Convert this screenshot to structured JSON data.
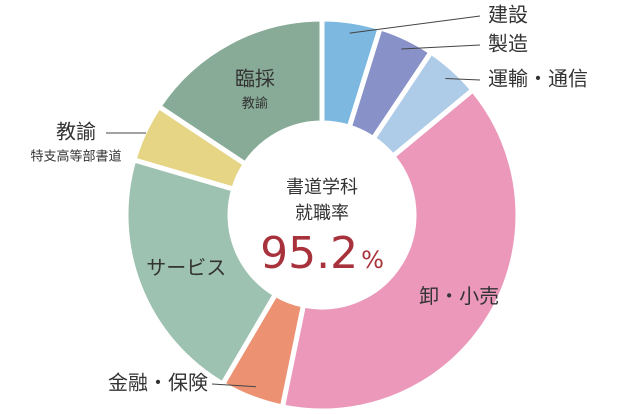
{
  "chart_data": {
    "type": "pie",
    "style": "donut",
    "center_text": {
      "line1": "書道学科",
      "line2": "就職率",
      "rate_value": "95.2",
      "rate_unit": "%"
    },
    "categories": [
      "建設",
      "製造",
      "運輸・通信",
      "卸・小売",
      "金融・保険",
      "サービス",
      "教諭",
      "臨採"
    ],
    "values": [
      4.6,
      4.4,
      4.4,
      37.6,
      5.0,
      20.2,
      4.6,
      15.0
    ],
    "colors": [
      "#7cb8e0",
      "#8891c8",
      "#aecbe8",
      "#eb98bb",
      "#ec9273",
      "#9dc2b2",
      "#e5d585",
      "#88ab97"
    ],
    "outer_labels": [
      {
        "index": 0,
        "text": "建設"
      },
      {
        "index": 1,
        "text": "製造"
      },
      {
        "index": 2,
        "text": "運輸・通信"
      },
      {
        "index": 4,
        "text": "金融・保険"
      },
      {
        "index": 6,
        "text": "教諭",
        "sub": "特支高等部書道"
      }
    ],
    "inner_labels": [
      {
        "index": 3,
        "text": "卸・小売"
      },
      {
        "index": 5,
        "text": "サービス"
      },
      {
        "index": 7,
        "text": "臨採",
        "sub": "教諭"
      }
    ],
    "rate_color": "#a8323c",
    "title": "",
    "legend": "none"
  }
}
